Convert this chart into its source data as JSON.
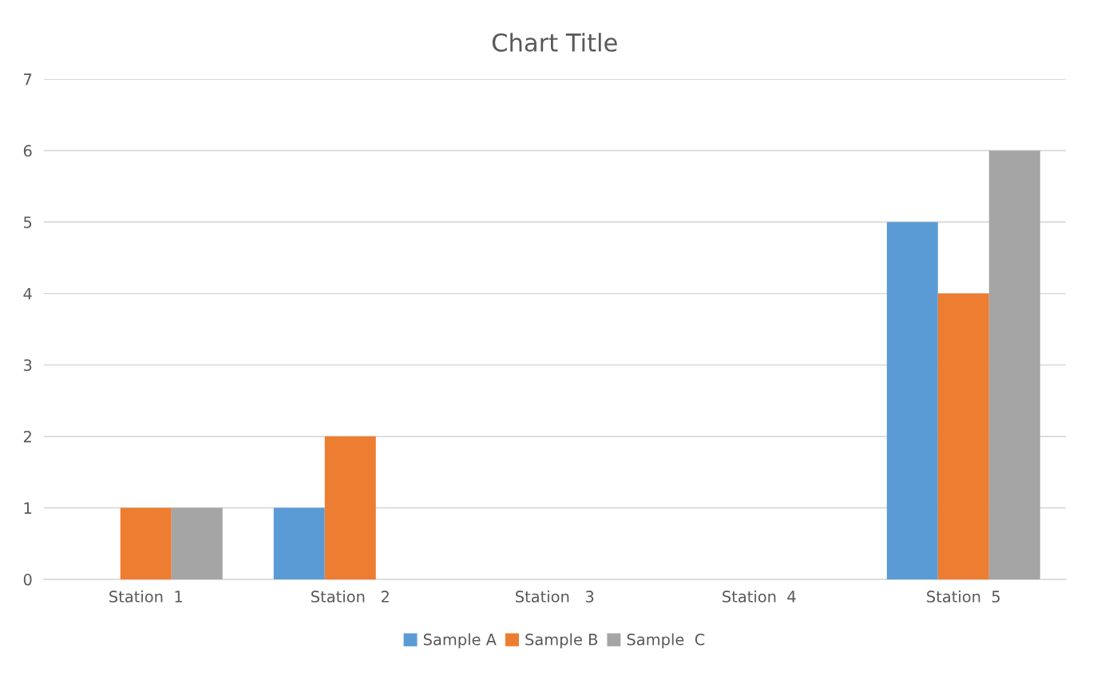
{
  "chart_data": {
    "type": "bar",
    "title": "Chart Title",
    "categories": [
      "Station  1",
      "Station   2",
      "Station   3",
      "Station  4",
      "Station  5"
    ],
    "series": [
      {
        "name": "Sample A",
        "color": "#5b9bd5",
        "values": [
          0,
          1,
          0,
          0,
          5
        ]
      },
      {
        "name": "Sample B",
        "color": "#ed7d31",
        "values": [
          1,
          2,
          0,
          0,
          4
        ]
      },
      {
        "name": "Sample  C",
        "color": "#a5a5a5",
        "values": [
          1,
          0,
          0,
          0,
          6
        ]
      }
    ],
    "ylim": [
      0,
      7
    ],
    "yticks": [
      0,
      1,
      2,
      3,
      4,
      5,
      6,
      7
    ],
    "grid": "y",
    "legend": "bottom"
  }
}
